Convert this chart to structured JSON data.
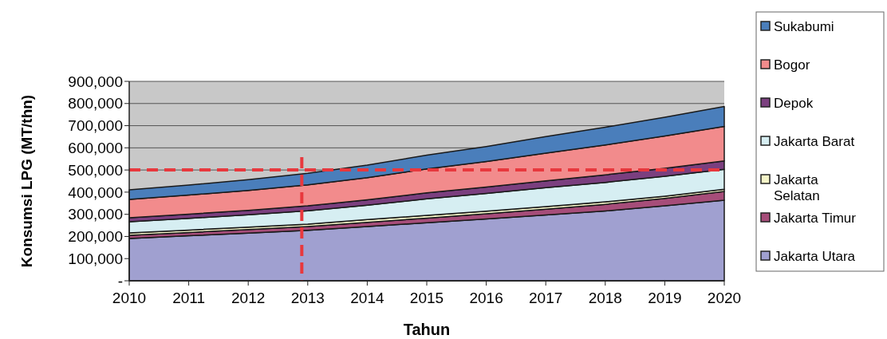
{
  "chart_data": {
    "type": "area",
    "stacked": true,
    "xlabel": "Tahun",
    "ylabel": "Konsumsi LPG (MT/thn)",
    "x": [
      2010,
      2011,
      2012,
      2013,
      2014,
      2015,
      2016,
      2017,
      2018,
      2019,
      2020
    ],
    "xlim": [
      2010,
      2020
    ],
    "xticks": [
      2010,
      2011,
      2012,
      2013,
      2014,
      2015,
      2016,
      2017,
      2018,
      2019,
      2020
    ],
    "ylim": [
      0,
      900000
    ],
    "yticks": [
      {
        "value": 0,
        "label": "-"
      },
      {
        "value": 100000,
        "label": "100,000"
      },
      {
        "value": 200000,
        "label": "200,000"
      },
      {
        "value": 300000,
        "label": "300,000"
      },
      {
        "value": 400000,
        "label": "400,000"
      },
      {
        "value": 500000,
        "label": "500,000"
      },
      {
        "value": 600000,
        "label": "600,000"
      },
      {
        "value": 700000,
        "label": "700,000"
      },
      {
        "value": 800000,
        "label": "800,000"
      },
      {
        "value": 900000,
        "label": "900,000"
      }
    ],
    "grid": "y",
    "legend": "right",
    "series": [
      {
        "name": "Jakarta Utara",
        "color": "#a0a0d0",
        "values": [
          191000,
          203000,
          215000,
          228000,
          245000,
          262000,
          279000,
          297000,
          315000,
          338000,
          364000
        ]
      },
      {
        "name": "Jakarta Timur",
        "color": "#a64d79",
        "values": [
          14000,
          15000,
          16000,
          17000,
          19000,
          21000,
          23000,
          26000,
          30000,
          34000,
          39000
        ]
      },
      {
        "name": "Jakarta Selatan",
        "color": "#f5f5c8",
        "values": [
          11000,
          11000,
          11000,
          11000,
          12000,
          12000,
          12000,
          12000,
          11000,
          10000,
          10000
        ]
      },
      {
        "name": "Jakarta Barat",
        "color": "#d6eef2",
        "values": [
          50000,
          53000,
          56000,
          60000,
          65000,
          75000,
          80000,
          85000,
          88000,
          90000,
          90000
        ]
      },
      {
        "name": "Depok",
        "color": "#7b3f7f",
        "values": [
          18000,
          19000,
          20000,
          22000,
          24000,
          27000,
          29000,
          31000,
          34000,
          36000,
          38000
        ]
      },
      {
        "name": "Bogor",
        "color": "#f28b8c",
        "values": [
          83000,
          86000,
          90000,
          95000,
          100000,
          108000,
          115000,
          125000,
          135000,
          145000,
          156000
        ]
      },
      {
        "name": "Sukabumi",
        "color": "#4a7ebb",
        "values": [
          43000,
          45000,
          48000,
          52000,
          57000,
          62000,
          68000,
          75000,
          80000,
          85000,
          90000
        ]
      }
    ],
    "ref_lines": [
      {
        "axis": "y",
        "value": 500000,
        "color": "#e8383d",
        "line_style": "dashed"
      },
      {
        "axis": "x",
        "value": 2012.9,
        "color": "#e8383d",
        "line_style": "dashed"
      }
    ]
  }
}
